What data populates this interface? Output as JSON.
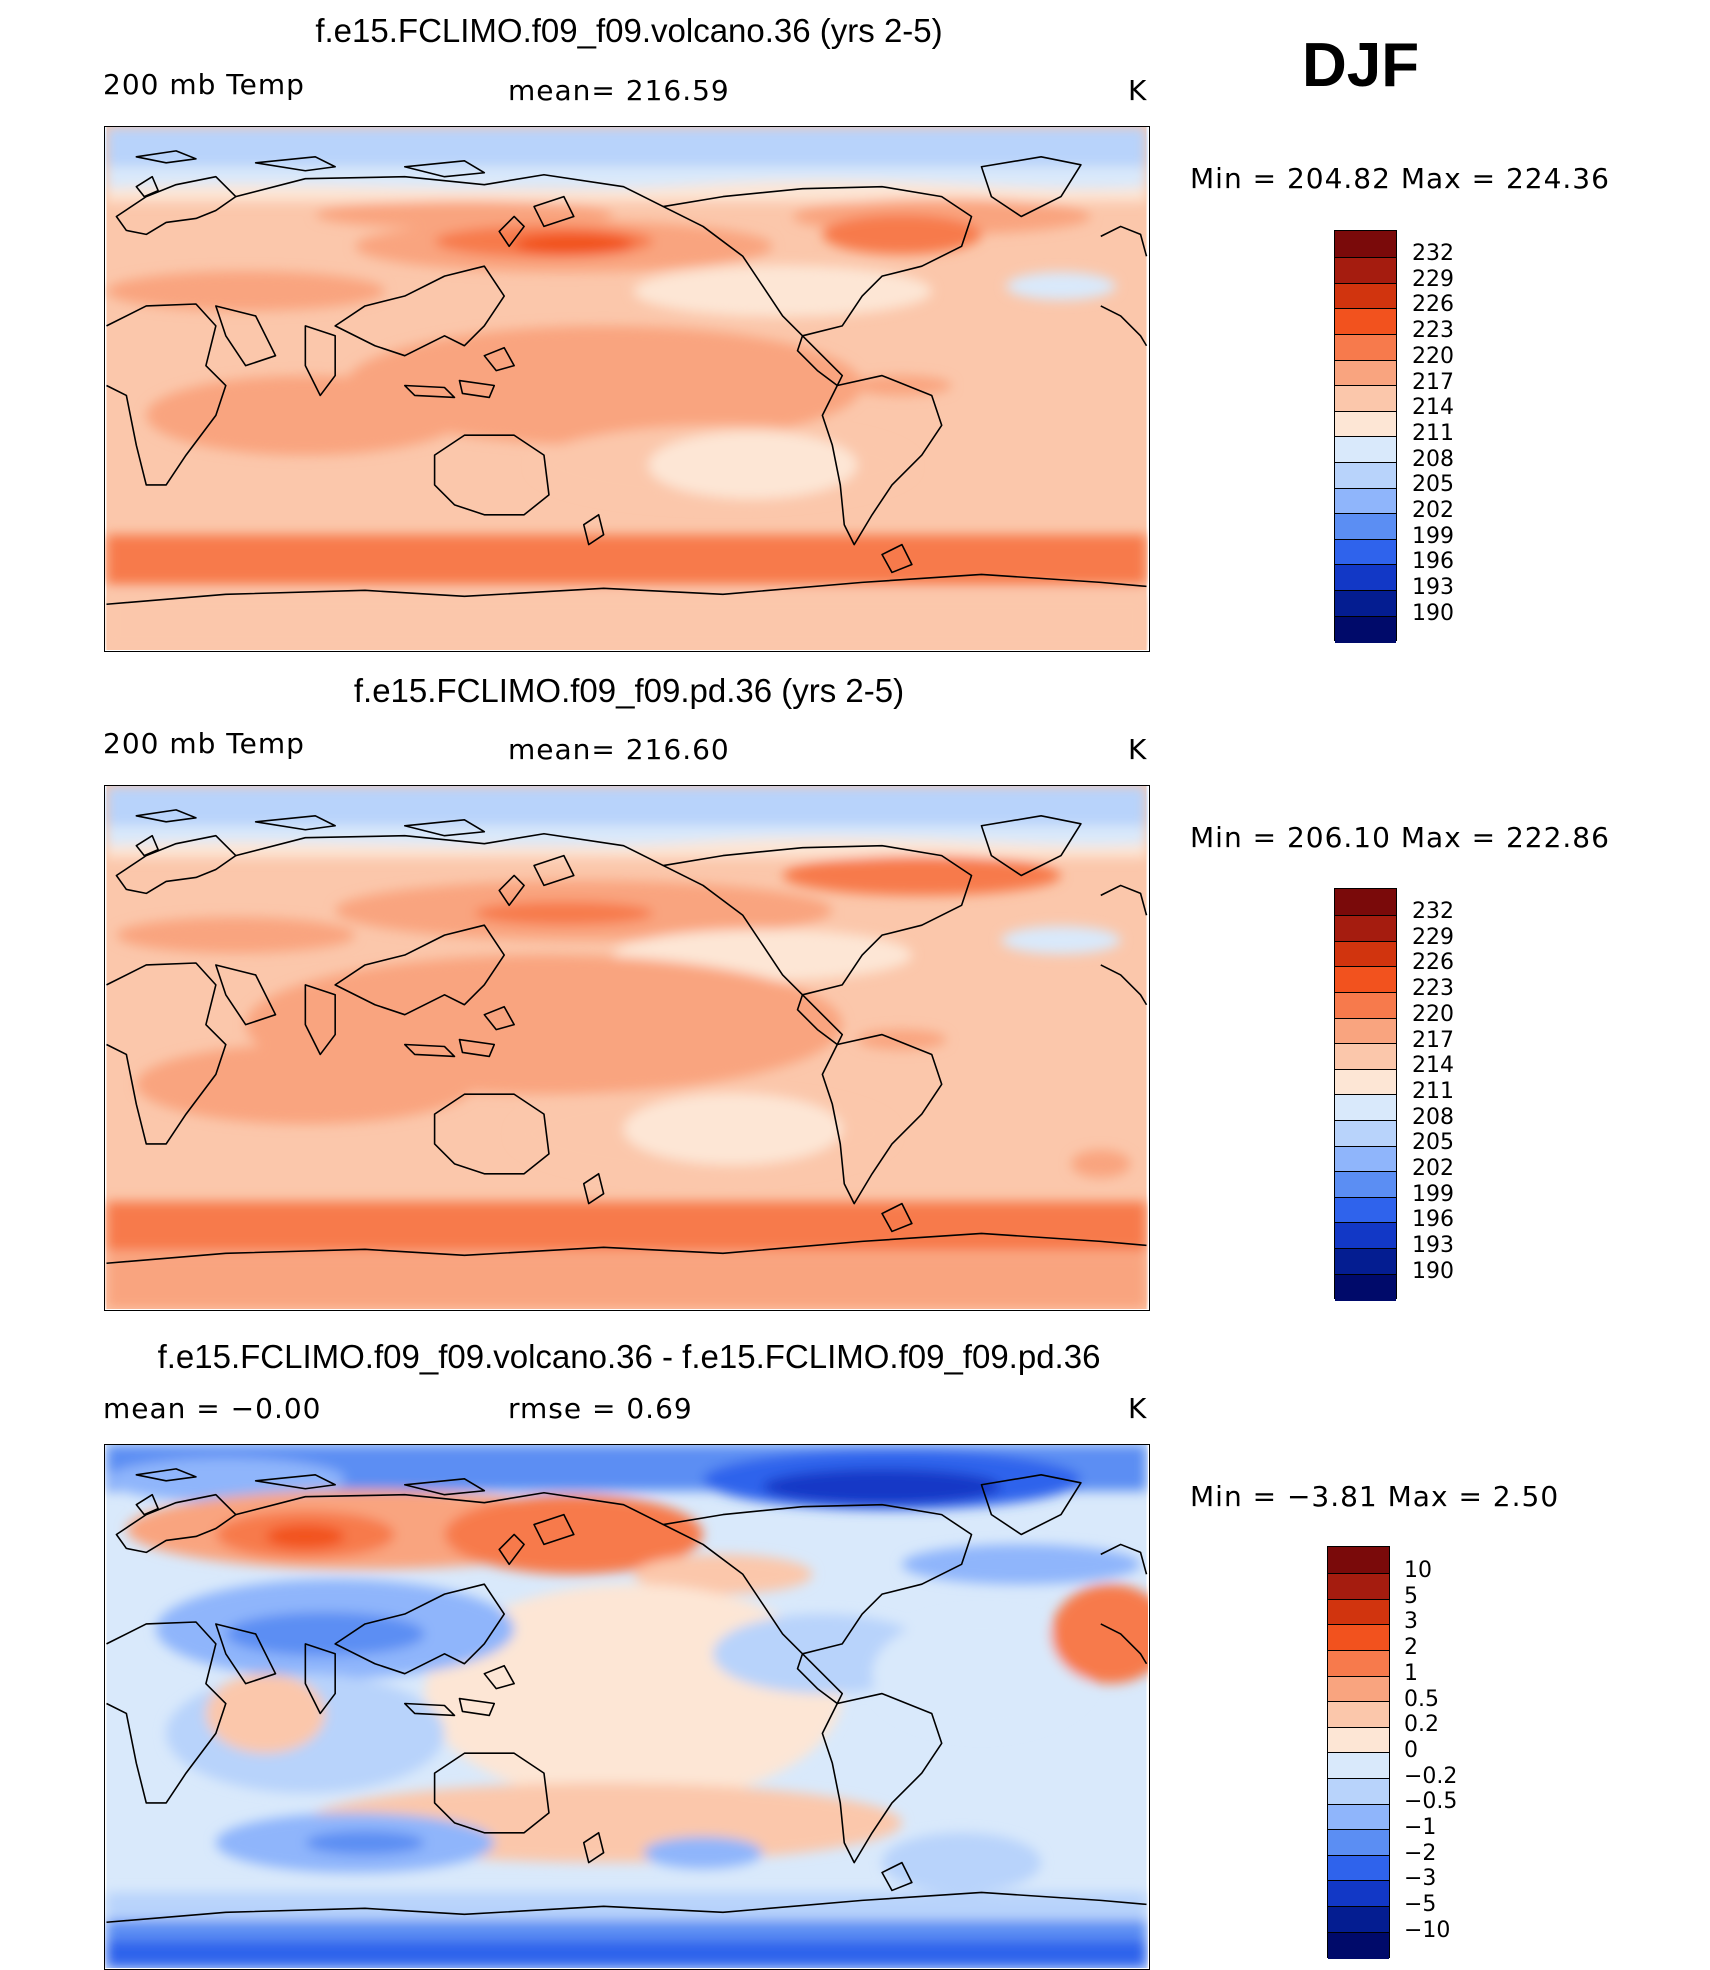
{
  "season": "DJF",
  "panels": [
    {
      "title": "f.e15.FCLIMO.f09_f09.volcano.36 (yrs 2-5)",
      "left_label": "200 mb Temp",
      "center_label": "mean= 216.59",
      "units": "K",
      "min_max": "Min = 204.82 Max = 224.36",
      "field": "volcano",
      "colorbar": {
        "labels": [
          "232",
          "229",
          "226",
          "223",
          "220",
          "217",
          "214",
          "211",
          "208",
          "205",
          "202",
          "199",
          "196",
          "193",
          "190"
        ]
      }
    },
    {
      "title": "f.e15.FCLIMO.f09_f09.pd.36 (yrs 2-5)",
      "left_label": "200 mb Temp",
      "center_label": "mean= 216.60",
      "units": "K",
      "min_max": "Min = 206.10 Max = 222.86",
      "field": "pd",
      "colorbar": {
        "labels": [
          "232",
          "229",
          "226",
          "223",
          "220",
          "217",
          "214",
          "211",
          "208",
          "205",
          "202",
          "199",
          "196",
          "193",
          "190"
        ]
      }
    },
    {
      "title": "f.e15.FCLIMO.f09_f09.volcano.36 - f.e15.FCLIMO.f09_f09.pd.36",
      "left_label": "mean =   −0.00",
      "center_label": "rmse =    0.69",
      "units": "K",
      "min_max": "Min =   −3.81 Max =     2.50",
      "field": "diff",
      "colorbar": {
        "labels": [
          "10",
          "5",
          "3",
          "2",
          "1",
          "0.5",
          "0.2",
          "0",
          "−0.2",
          "−0.5",
          "−1",
          "−2",
          "−3",
          "−5",
          "−10"
        ]
      }
    }
  ],
  "colors": {
    "scale": [
      "#7a0a0a",
      "#a51c0f",
      "#d1340e",
      "#f2521e",
      "#f77a4c",
      "#f9a47f",
      "#fbc7ab",
      "#fde6d5",
      "#d9e9fb",
      "#b8d3fb",
      "#8fb5fb",
      "#5b8ef3",
      "#2f63ec",
      "#1238c6",
      "#041d91",
      "#000a6a"
    ]
  }
}
